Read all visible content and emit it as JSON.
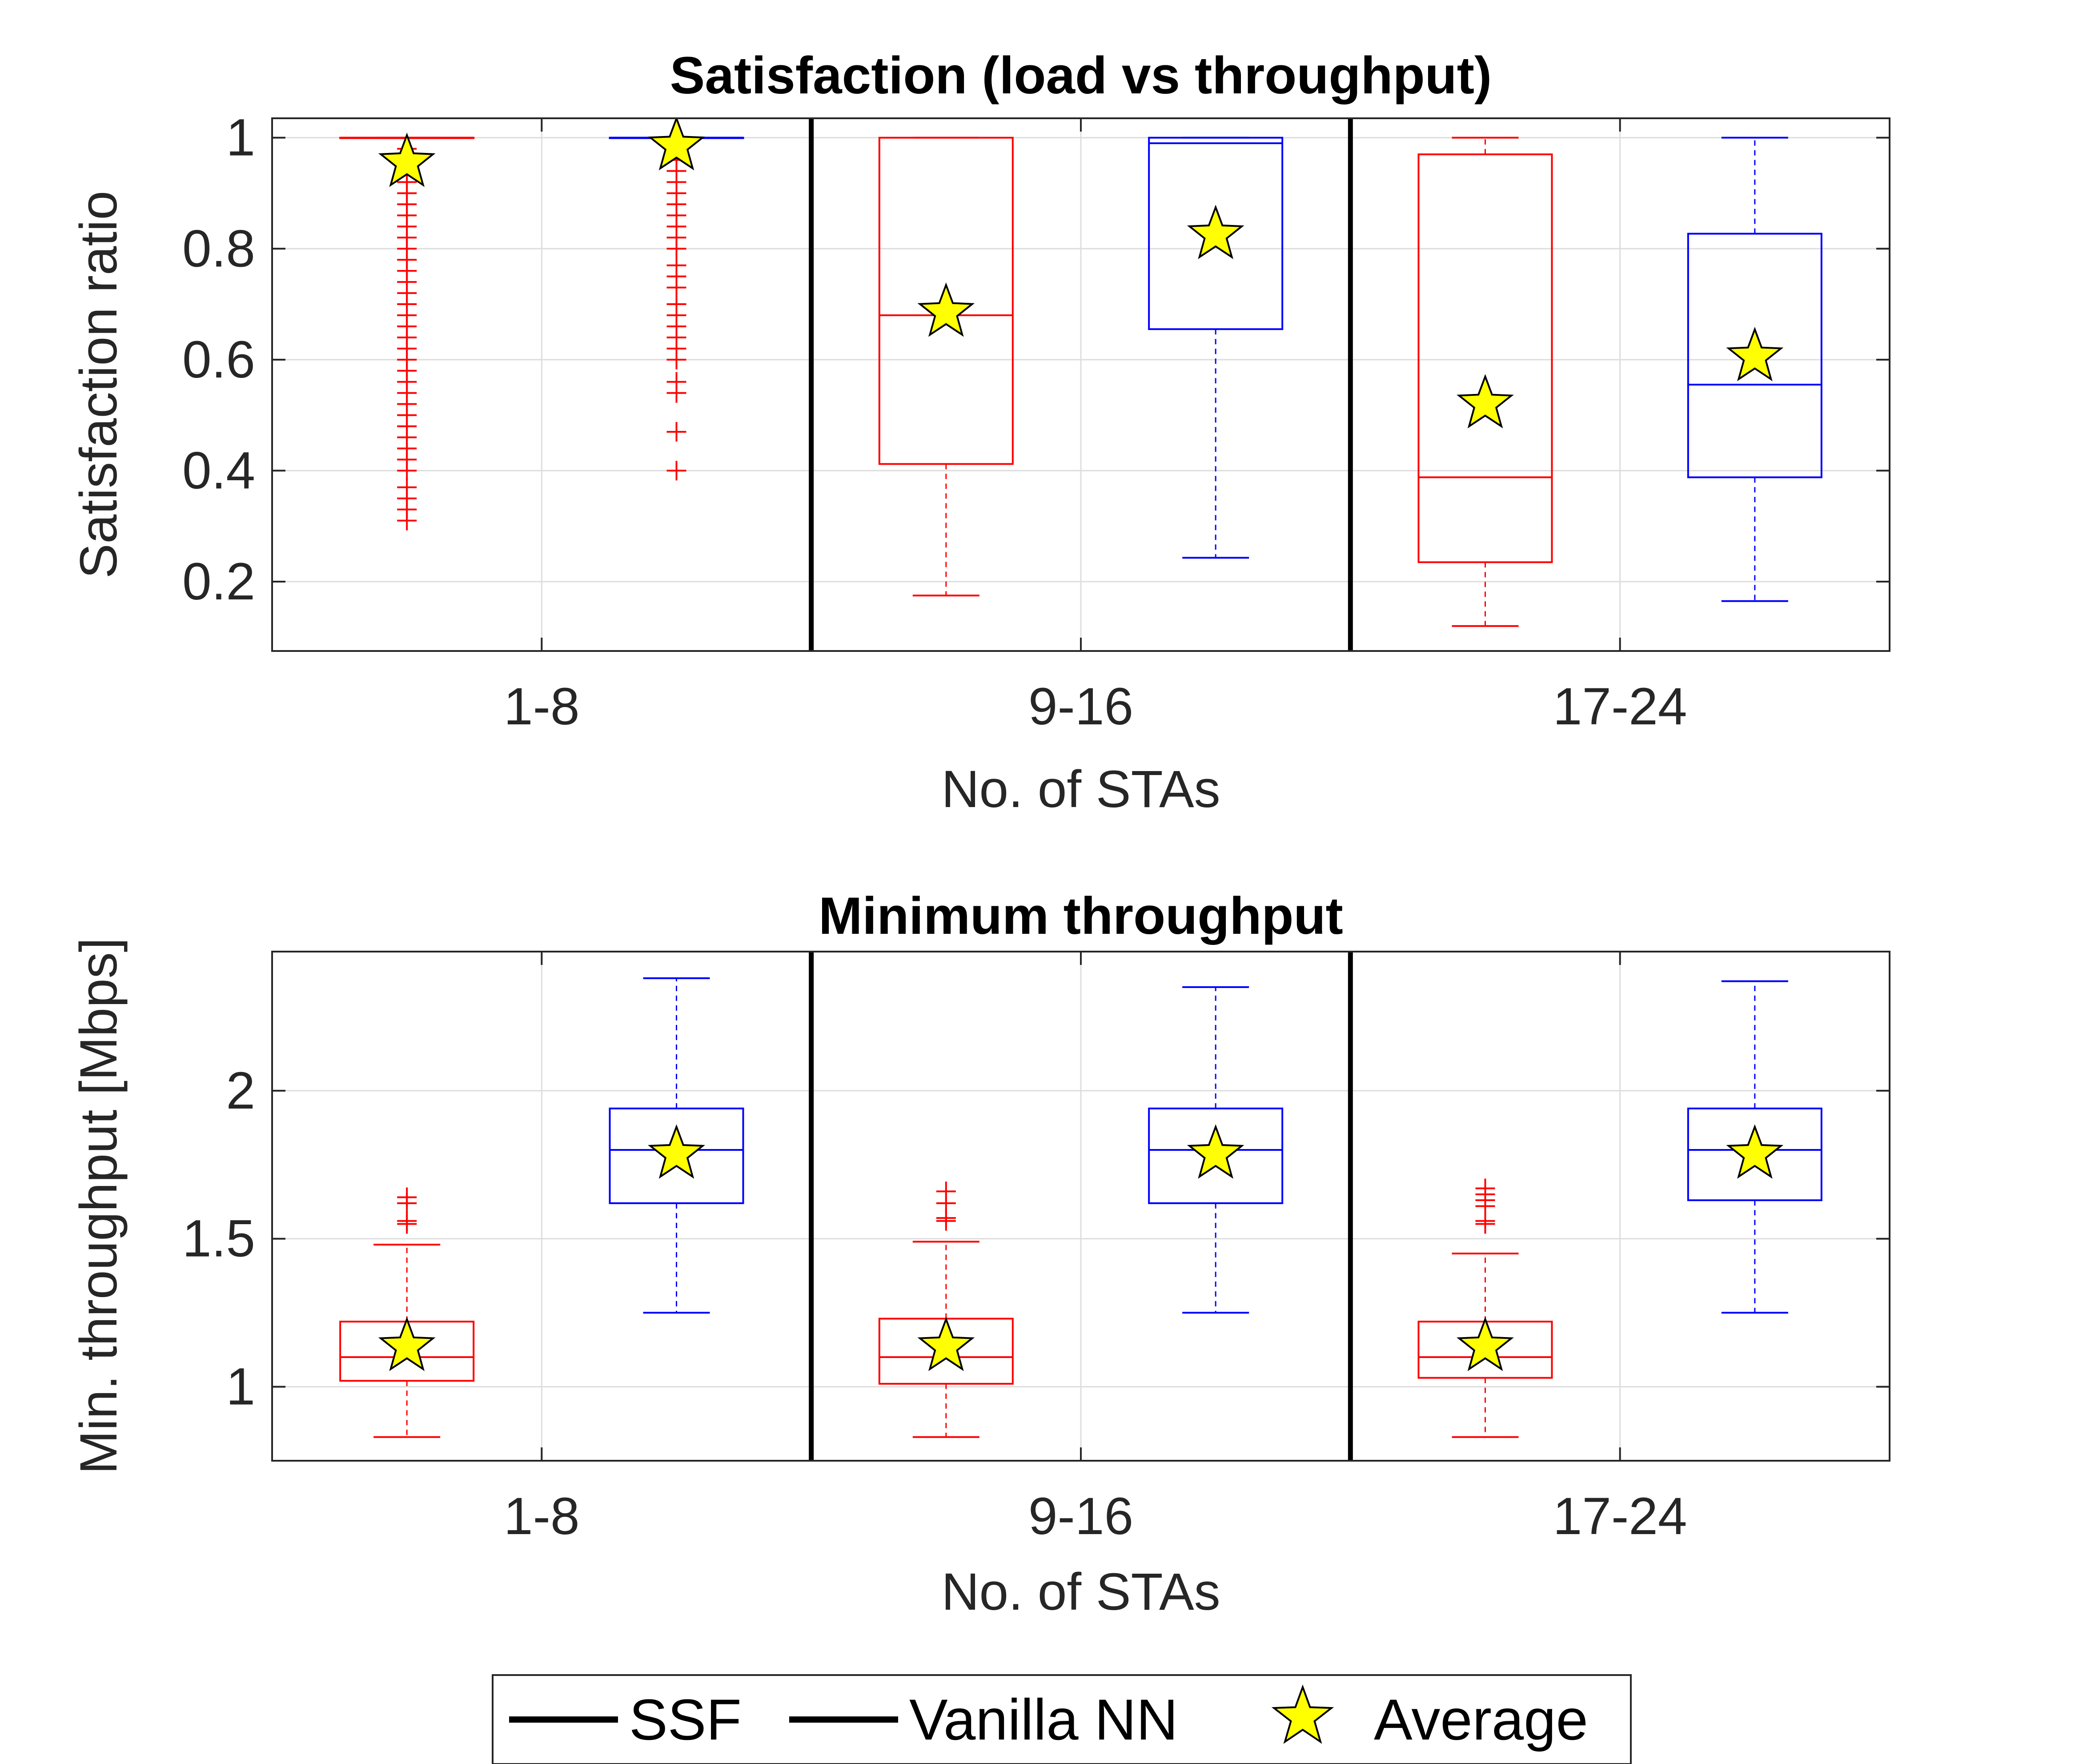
{
  "colors": {
    "ssf": "#ff0000",
    "vanilla": "#0000ff",
    "average_fill": "#ffff00",
    "axis": "#262626",
    "grid": "#dddddd",
    "separator": "#000000"
  },
  "legend": {
    "placement": "bottom-center",
    "entries": [
      {
        "label": "SSF",
        "marker": "line"
      },
      {
        "label": "Vanilla NN",
        "marker": "line"
      },
      {
        "label": "Average",
        "marker": "star"
      }
    ]
  },
  "chart_data": [
    {
      "type": "box",
      "title": "Satisfaction (load vs throughput)",
      "xlabel": "No. of STAs",
      "ylabel": "Satisfaction ratio",
      "ylim": [
        0.075,
        1.035
      ],
      "yticks": [
        0.2,
        0.4,
        0.6,
        0.8,
        1
      ],
      "ytick_labels": [
        "0.2",
        "0.4",
        "0.6",
        "0.8",
        "1"
      ],
      "categories": [
        "1-8",
        "9-16",
        "17-24"
      ],
      "grid": true,
      "series": [
        {
          "name": "SSF",
          "boxes": [
            {
              "whisker_low": 1.0,
              "q1": 1.0,
              "median": 1.0,
              "q3": 1.0,
              "whisker_high": 1.0,
              "mean": 0.955,
              "outliers": [
                0.31,
                0.33,
                0.35,
                0.37,
                0.4,
                0.42,
                0.44,
                0.46,
                0.48,
                0.5,
                0.52,
                0.54,
                0.56,
                0.58,
                0.6,
                0.62,
                0.64,
                0.66,
                0.68,
                0.7,
                0.72,
                0.74,
                0.76,
                0.78,
                0.8,
                0.82,
                0.84,
                0.86,
                0.88,
                0.9,
                0.92,
                0.94,
                0.96,
                0.98
              ]
            },
            {
              "whisker_low": 0.175,
              "q1": 0.412,
              "median": 0.68,
              "q3": 1.0,
              "whisker_high": 1.0,
              "mean": 0.685,
              "outliers": []
            },
            {
              "whisker_low": 0.12,
              "q1": 0.235,
              "median": 0.388,
              "q3": 0.97,
              "whisker_high": 1.0,
              "mean": 0.52,
              "outliers": []
            }
          ]
        },
        {
          "name": "Vanilla NN",
          "boxes": [
            {
              "whisker_low": 1.0,
              "q1": 1.0,
              "median": 1.0,
              "q3": 1.0,
              "whisker_high": 1.0,
              "mean": 0.985,
              "outliers": [
                0.4,
                0.47,
                0.54,
                0.56,
                0.6,
                0.62,
                0.64,
                0.66,
                0.68,
                0.7,
                0.73,
                0.75,
                0.77,
                0.8,
                0.82,
                0.84,
                0.86,
                0.88,
                0.9,
                0.92,
                0.94,
                0.96,
                0.98
              ]
            },
            {
              "whisker_low": 0.243,
              "q1": 0.655,
              "median": 0.99,
              "q3": 1.0,
              "whisker_high": 1.0,
              "mean": 0.825,
              "outliers": []
            },
            {
              "whisker_low": 0.165,
              "q1": 0.388,
              "median": 0.555,
              "q3": 0.827,
              "whisker_high": 1.0,
              "mean": 0.605,
              "outliers": []
            }
          ]
        }
      ]
    },
    {
      "type": "box",
      "title": "Minimum throughput",
      "xlabel": "No. of STAs",
      "ylabel": "Min. throughput [Mbps]",
      "ylim": [
        0.75,
        2.47
      ],
      "yticks": [
        1,
        1.5,
        2
      ],
      "ytick_labels": [
        "1",
        "1.5",
        "2"
      ],
      "categories": [
        "1-8",
        "9-16",
        "17-24"
      ],
      "grid": true,
      "series": [
        {
          "name": "SSF",
          "boxes": [
            {
              "whisker_low": 0.83,
              "q1": 1.02,
              "median": 1.1,
              "q3": 1.22,
              "whisker_high": 1.48,
              "mean": 1.135,
              "outliers": [
                1.55,
                1.56,
                1.62,
                1.64
              ]
            },
            {
              "whisker_low": 0.83,
              "q1": 1.01,
              "median": 1.1,
              "q3": 1.23,
              "whisker_high": 1.49,
              "mean": 1.135,
              "outliers": [
                1.56,
                1.57,
                1.62,
                1.66
              ]
            },
            {
              "whisker_low": 0.83,
              "q1": 1.03,
              "median": 1.1,
              "q3": 1.22,
              "whisker_high": 1.45,
              "mean": 1.135,
              "outliers": [
                1.55,
                1.56,
                1.61,
                1.63,
                1.65,
                1.67
              ]
            }
          ]
        },
        {
          "name": "Vanilla NN",
          "boxes": [
            {
              "whisker_low": 1.25,
              "q1": 1.62,
              "median": 1.8,
              "q3": 1.94,
              "whisker_high": 2.38,
              "mean": 1.785,
              "outliers": []
            },
            {
              "whisker_low": 1.25,
              "q1": 1.62,
              "median": 1.8,
              "q3": 1.94,
              "whisker_high": 2.35,
              "mean": 1.785,
              "outliers": []
            },
            {
              "whisker_low": 1.25,
              "q1": 1.63,
              "median": 1.8,
              "q3": 1.94,
              "whisker_high": 2.37,
              "mean": 1.785,
              "outliers": []
            }
          ]
        }
      ]
    }
  ]
}
